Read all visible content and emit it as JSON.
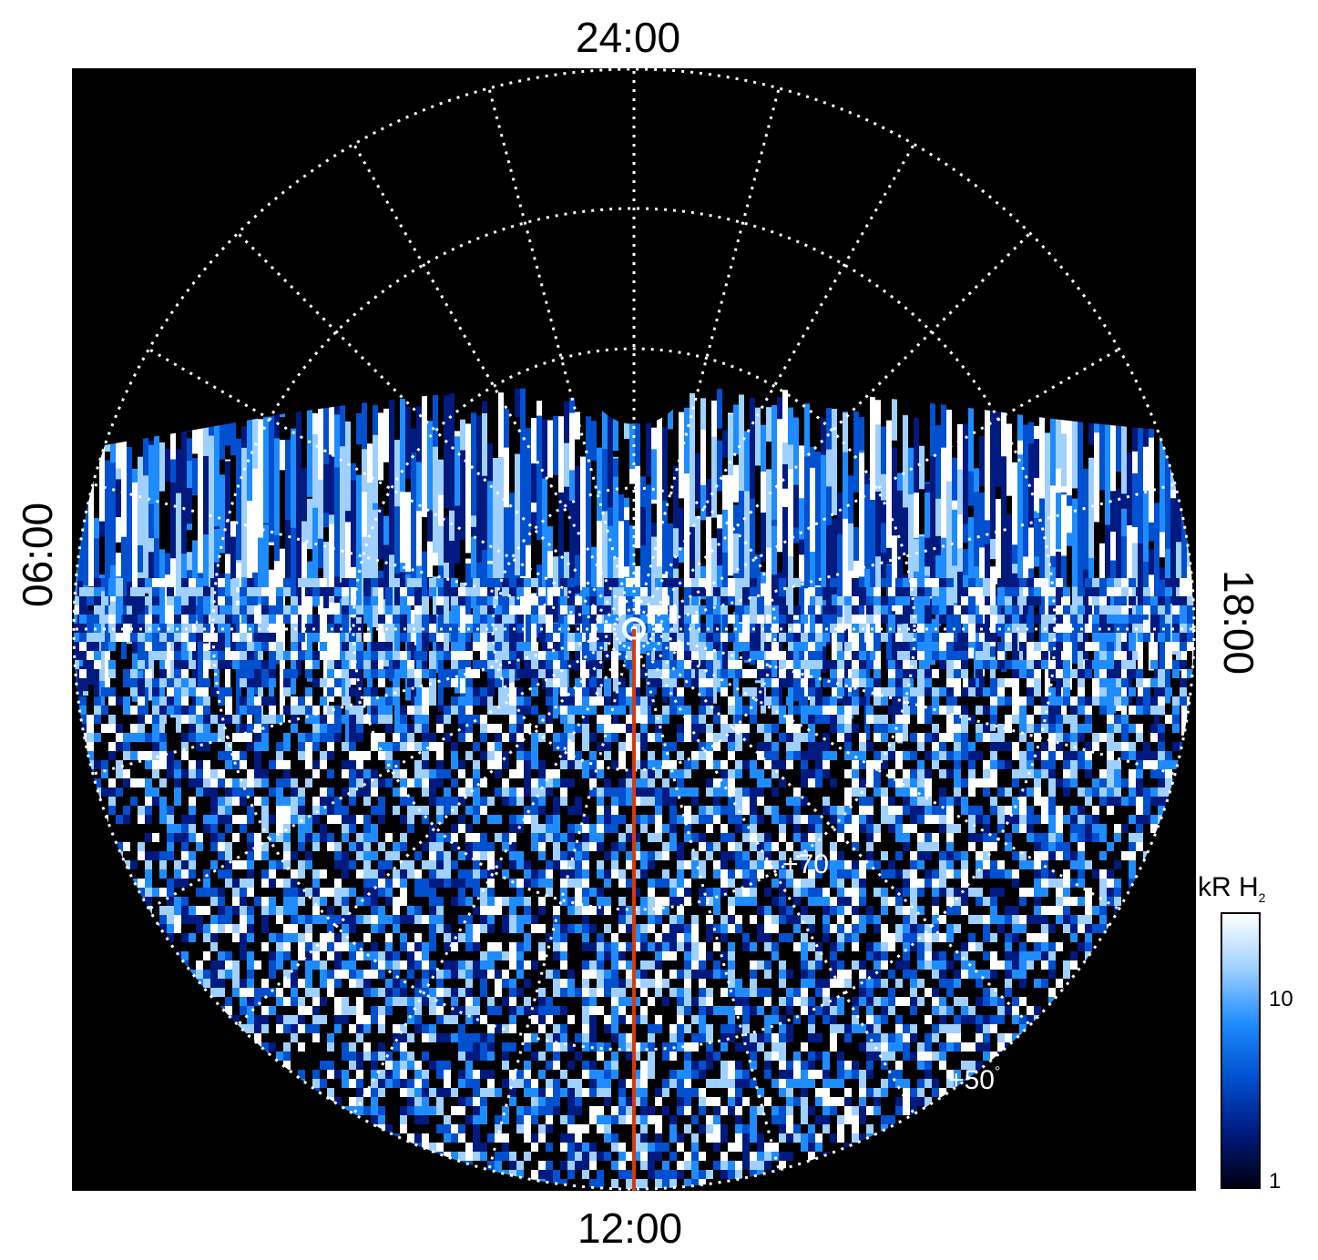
{
  "local_time_labels": {
    "top": "24:00",
    "bottom": "12:00",
    "left": "06:00",
    "right": "18:00"
  },
  "latitude_labels": {
    "inner": "+70",
    "outer": "+50",
    "degree_mark": "°"
  },
  "colorbar": {
    "title_main": "kR H",
    "title_sub": "2",
    "ticks": [
      "10",
      "1"
    ],
    "colors": [
      "#000010",
      "#001a80",
      "#0050d0",
      "#1e8cff",
      "#9fd0ff",
      "#ffffff"
    ]
  },
  "colors": {
    "background": "#000000",
    "grid": "#ffffff",
    "meridian_line": "#d23b12"
  }
}
